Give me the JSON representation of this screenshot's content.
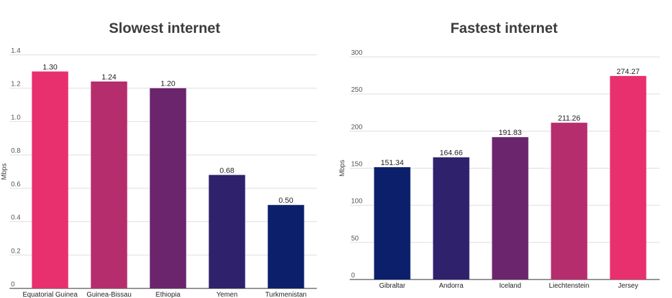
{
  "chart_data": [
    {
      "type": "bar",
      "title": "Slowest internet",
      "ylabel": "Mbps",
      "xlabel": "",
      "ylim": [
        0,
        1.4
      ],
      "yticks": [
        "0",
        "0.2",
        "0.4",
        "0.6",
        "0.8",
        "1.0",
        "1.2",
        "1.4"
      ],
      "categories": [
        "Equatorial Guinea",
        "Guinea-Bissau",
        "Ethiopia",
        "Yemen",
        "Turkmenistan"
      ],
      "values": [
        1.3,
        1.24,
        1.2,
        0.68,
        0.5
      ],
      "data_labels": [
        "1.30",
        "1.24",
        "1.20",
        "0.68",
        "0.50"
      ],
      "colors": [
        "#e8306e",
        "#b62d6d",
        "#6a256d",
        "#2f216b",
        "#0c1f6b"
      ],
      "grid": true
    },
    {
      "type": "bar",
      "title": "Fastest internet",
      "ylabel": "Mbps",
      "xlabel": "",
      "ylim": [
        0,
        300
      ],
      "yticks": [
        "0",
        "50",
        "100",
        "150",
        "200",
        "250",
        "300"
      ],
      "categories": [
        "Gibraltar",
        "Andorra",
        "Iceland",
        "Liechtenstein",
        "Jersey"
      ],
      "values": [
        151.34,
        164.66,
        191.83,
        211.26,
        274.27
      ],
      "data_labels": [
        "151.34",
        "164.66",
        "191.83",
        "211.26",
        "274.27"
      ],
      "colors": [
        "#0c1f6b",
        "#2f216b",
        "#6a256d",
        "#b62d6d",
        "#e8306e"
      ],
      "grid": true
    }
  ]
}
